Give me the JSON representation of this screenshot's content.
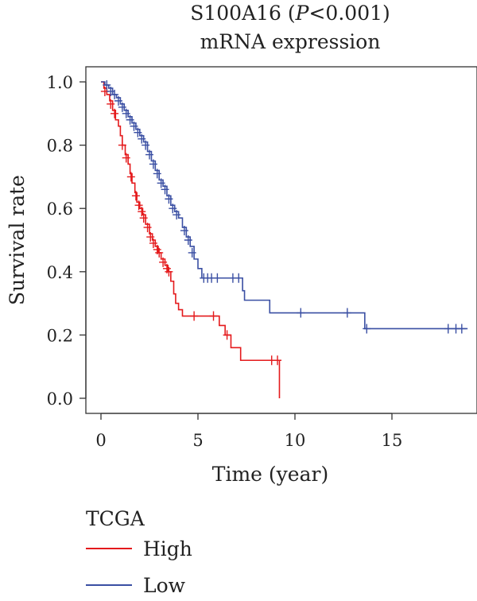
{
  "title": {
    "gene": "S100A16",
    "p_open": " (",
    "p_italic": "P",
    "p_rest": "<0.001)",
    "subtitle": "mRNA expression"
  },
  "legend": {
    "title": "TCGA",
    "items": [
      {
        "label": "High",
        "color": "#e41a1c"
      },
      {
        "label": "Low",
        "color": "#3a4fa3"
      }
    ]
  },
  "chart_data": {
    "type": "line",
    "title": "S100A16 (P<0.001) mRNA expression",
    "xlabel": "Time (year)",
    "ylabel": "Survival rate",
    "xlim": [
      0,
      19
    ],
    "ylim": [
      0,
      1.0
    ],
    "xticks": [
      0,
      5,
      10,
      15
    ],
    "yticks": [
      0.0,
      0.2,
      0.4,
      0.6,
      0.8,
      1.0
    ],
    "ytick_labels": [
      "0.0",
      "0.2",
      "0.4",
      "0.6",
      "0.8",
      "1.0"
    ],
    "grid": false,
    "legend_position": "bottom-left",
    "series": [
      {
        "name": "High",
        "color": "#e41a1c",
        "steps": [
          [
            0,
            1.0
          ],
          [
            0.15,
            0.98
          ],
          [
            0.3,
            0.96
          ],
          [
            0.45,
            0.94
          ],
          [
            0.6,
            0.91
          ],
          [
            0.75,
            0.88
          ],
          [
            0.9,
            0.86
          ],
          [
            1.0,
            0.83
          ],
          [
            1.1,
            0.8
          ],
          [
            1.25,
            0.77
          ],
          [
            1.4,
            0.74
          ],
          [
            1.5,
            0.71
          ],
          [
            1.6,
            0.68
          ],
          [
            1.75,
            0.65
          ],
          [
            1.85,
            0.62
          ],
          [
            2.0,
            0.6
          ],
          [
            2.15,
            0.58
          ],
          [
            2.3,
            0.55
          ],
          [
            2.5,
            0.52
          ],
          [
            2.65,
            0.5
          ],
          [
            2.8,
            0.48
          ],
          [
            2.95,
            0.46
          ],
          [
            3.1,
            0.44
          ],
          [
            3.3,
            0.42
          ],
          [
            3.45,
            0.4
          ],
          [
            3.6,
            0.37
          ],
          [
            3.75,
            0.33
          ],
          [
            3.85,
            0.3
          ],
          [
            4.0,
            0.28
          ],
          [
            4.2,
            0.26
          ],
          [
            6.1,
            0.23
          ],
          [
            6.4,
            0.2
          ],
          [
            6.7,
            0.16
          ],
          [
            7.2,
            0.12
          ],
          [
            9.2,
            0.0
          ]
        ],
        "censors": [
          [
            0.2,
            0.97
          ],
          [
            0.5,
            0.93
          ],
          [
            0.7,
            0.9
          ],
          [
            1.1,
            0.8
          ],
          [
            1.3,
            0.76
          ],
          [
            1.55,
            0.7
          ],
          [
            1.8,
            0.64
          ],
          [
            1.95,
            0.61
          ],
          [
            2.1,
            0.59
          ],
          [
            2.2,
            0.57
          ],
          [
            2.4,
            0.54
          ],
          [
            2.55,
            0.51
          ],
          [
            2.7,
            0.49
          ],
          [
            2.9,
            0.47
          ],
          [
            3.0,
            0.46
          ],
          [
            3.2,
            0.43
          ],
          [
            3.4,
            0.41
          ],
          [
            3.5,
            0.4
          ],
          [
            4.8,
            0.26
          ],
          [
            5.8,
            0.26
          ],
          [
            6.5,
            0.2
          ],
          [
            8.8,
            0.12
          ],
          [
            9.1,
            0.12
          ]
        ],
        "end": 9.2
      },
      {
        "name": "Low",
        "color": "#3a4fa3",
        "steps": [
          [
            0,
            1.0
          ],
          [
            0.2,
            0.99
          ],
          [
            0.4,
            0.98
          ],
          [
            0.6,
            0.96
          ],
          [
            0.8,
            0.95
          ],
          [
            1.0,
            0.93
          ],
          [
            1.2,
            0.91
          ],
          [
            1.4,
            0.89
          ],
          [
            1.6,
            0.87
          ],
          [
            1.8,
            0.85
          ],
          [
            2.0,
            0.83
          ],
          [
            2.2,
            0.81
          ],
          [
            2.4,
            0.78
          ],
          [
            2.6,
            0.75
          ],
          [
            2.8,
            0.72
          ],
          [
            3.0,
            0.69
          ],
          [
            3.2,
            0.67
          ],
          [
            3.4,
            0.64
          ],
          [
            3.6,
            0.61
          ],
          [
            3.8,
            0.59
          ],
          [
            4.0,
            0.57
          ],
          [
            4.2,
            0.54
          ],
          [
            4.4,
            0.51
          ],
          [
            4.6,
            0.48
          ],
          [
            4.8,
            0.44
          ],
          [
            5.0,
            0.41
          ],
          [
            5.2,
            0.38
          ],
          [
            7.3,
            0.34
          ],
          [
            7.4,
            0.31
          ],
          [
            8.7,
            0.27
          ],
          [
            13.6,
            0.22
          ]
        ],
        "censors": [
          [
            0.3,
            0.99
          ],
          [
            0.5,
            0.97
          ],
          [
            0.7,
            0.96
          ],
          [
            0.9,
            0.94
          ],
          [
            1.1,
            0.92
          ],
          [
            1.3,
            0.9
          ],
          [
            1.5,
            0.88
          ],
          [
            1.7,
            0.86
          ],
          [
            1.9,
            0.84
          ],
          [
            2.1,
            0.82
          ],
          [
            2.3,
            0.8
          ],
          [
            2.5,
            0.77
          ],
          [
            2.7,
            0.74
          ],
          [
            2.9,
            0.71
          ],
          [
            3.1,
            0.68
          ],
          [
            3.3,
            0.66
          ],
          [
            3.5,
            0.63
          ],
          [
            3.7,
            0.6
          ],
          [
            3.9,
            0.58
          ],
          [
            4.3,
            0.53
          ],
          [
            4.5,
            0.5
          ],
          [
            4.7,
            0.46
          ],
          [
            5.3,
            0.38
          ],
          [
            5.5,
            0.38
          ],
          [
            5.7,
            0.38
          ],
          [
            6.0,
            0.38
          ],
          [
            6.8,
            0.38
          ],
          [
            7.1,
            0.38
          ],
          [
            10.3,
            0.27
          ],
          [
            12.7,
            0.27
          ],
          [
            13.7,
            0.22
          ],
          [
            17.9,
            0.22
          ],
          [
            18.3,
            0.22
          ],
          [
            18.6,
            0.22
          ]
        ],
        "end": 18.9
      }
    ]
  }
}
